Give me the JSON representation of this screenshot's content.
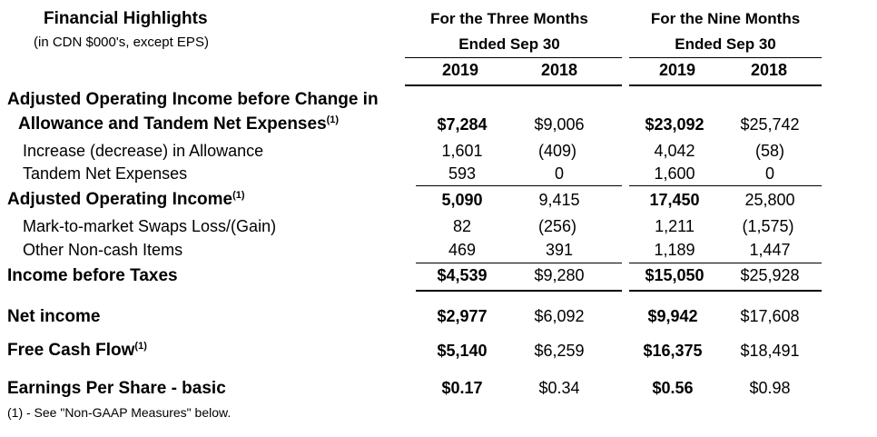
{
  "header": {
    "title": "Financial Highlights",
    "subtitle": "(in CDN $000's, except EPS)",
    "three_months_line1": "For the Three Months",
    "three_months_line2": "Ended Sep 30",
    "nine_months_line1": "For the Nine Months",
    "nine_months_line2": "Ended Sep 30",
    "years": [
      "2019",
      "2018",
      "2019",
      "2018"
    ]
  },
  "footnote_marker": "(1)",
  "rows": [
    {
      "label": "Adjusted Operating Income before Change in",
      "values": []
    },
    {
      "label": "Allowance and Tandem Net Expenses",
      "values": [
        "$7,284",
        "$9,006",
        "$23,092",
        "$25,742"
      ]
    },
    {
      "label": "Increase (decrease) in Allowance",
      "values": [
        "1,601",
        "(409)",
        "4,042",
        "(58)"
      ]
    },
    {
      "label": "Tandem Net Expenses",
      "values": [
        "593",
        "0",
        "1,600",
        "0"
      ]
    },
    {
      "label": "Adjusted Operating Income",
      "values": [
        "5,090",
        "9,415",
        "17,450",
        "25,800"
      ]
    },
    {
      "label": "Mark-to-market Swaps Loss/(Gain)",
      "values": [
        "82",
        "(256)",
        "1,211",
        "(1,575)"
      ]
    },
    {
      "label": "Other Non-cash Items",
      "values": [
        "469",
        "391",
        "1,189",
        "1,447"
      ]
    },
    {
      "label": "Income before Taxes",
      "values": [
        "$4,539",
        "$9,280",
        "$15,050",
        "$25,928"
      ]
    },
    {
      "label": "Net income",
      "values": [
        "$2,977",
        "$6,092",
        "$9,942",
        "$17,608"
      ]
    },
    {
      "label": "Free Cash Flow",
      "values": [
        "$5,140",
        "$6,259",
        "$16,375",
        "$18,491"
      ]
    },
    {
      "label": "Earnings Per Share - basic",
      "values": [
        "$0.17",
        "$0.34",
        "$0.56",
        "$0.98"
      ]
    }
  ],
  "footnote": "(1)  - See \"Non-GAAP Measures\" below."
}
